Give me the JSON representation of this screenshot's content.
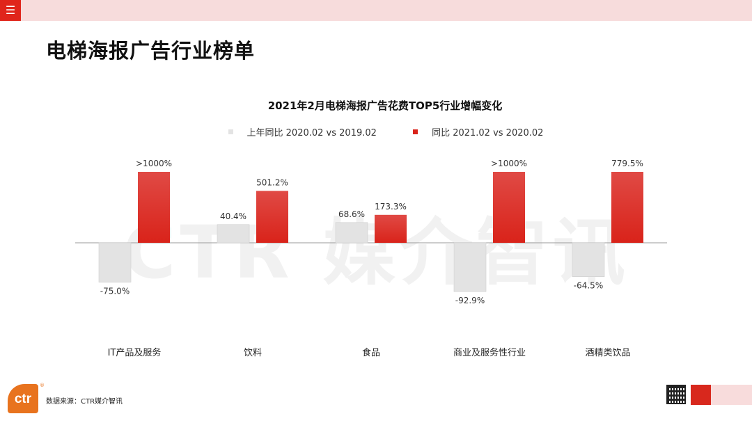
{
  "header": {
    "menu_icon": "menu-icon",
    "menu_glyph": "☰",
    "title": "电梯海报广告行业榜单"
  },
  "watermark": "CTR 媒介智讯",
  "colors": {
    "accent": "#e0251b",
    "series_prev": "#e3e3e3",
    "series_curr": "#d9231a",
    "top_bar": "#f7dcdc"
  },
  "chart_data": {
    "type": "bar",
    "title": "2021年2月电梯海报广告花费TOP5行业增幅变化",
    "legend_position": "top",
    "grid": false,
    "categories": [
      "IT产品及服务",
      "饮料",
      "食品",
      "商业及服务性行业",
      "酒精类饮品"
    ],
    "series": [
      {
        "name": "上年同比 2020.02 vs 2019.02",
        "color": "#e3e3e3",
        "values": [
          -75.0,
          40.4,
          68.6,
          -92.9,
          -64.5
        ],
        "labels": [
          "-75.0%",
          "40.4%",
          "68.6%",
          "-92.9%",
          "-64.5%"
        ]
      },
      {
        "name": "同比 2021.02 vs 2020.02",
        "color": "#d9231a",
        "values": [
          null,
          501.2,
          173.3,
          null,
          779.5
        ],
        "labels": [
          ">1000%",
          "501.2%",
          "173.3%",
          ">1000%",
          "779.5%"
        ]
      }
    ]
  },
  "footer": {
    "logo_text": "ctr",
    "logo_mark": "®",
    "source": "数据来源：CTR媒介智讯",
    "qr_icon": "qr-code-icon"
  }
}
